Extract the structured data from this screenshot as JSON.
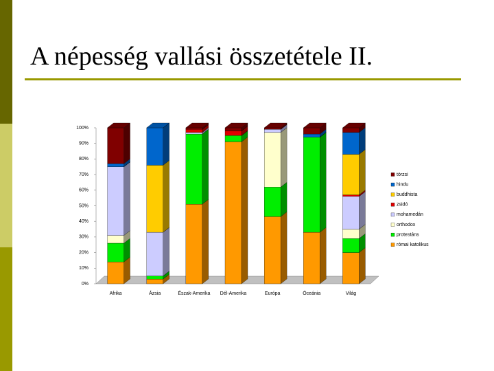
{
  "title": "A népesség vallási összetétele II.",
  "chart_data": {
    "type": "bar",
    "stacked": true,
    "categories": [
      "Afrika",
      "Ázsia",
      "Észak-Amerika",
      "Dél-Amerika",
      "Európa",
      "Óceánia",
      "Világ"
    ],
    "series": [
      {
        "name": "törzsi",
        "color": "#800000",
        "values": [
          23,
          0,
          1,
          2,
          1,
          4,
          3
        ]
      },
      {
        "name": "hindu",
        "color": "#0066cc",
        "values": [
          2,
          24,
          0,
          0,
          0,
          2,
          14
        ]
      },
      {
        "name": "buddhista",
        "color": "#ffcc00",
        "values": [
          0,
          43,
          0,
          0,
          0,
          0,
          26
        ]
      },
      {
        "name": "zsidó",
        "color": "#e00000",
        "values": [
          0,
          0,
          2,
          3,
          0,
          0,
          1
        ]
      },
      {
        "name": "mohamedán",
        "color": "#ccccff",
        "values": [
          44,
          28,
          1,
          0,
          2,
          0,
          21
        ]
      },
      {
        "name": "orthodox",
        "color": "#ffffcc",
        "values": [
          5,
          0,
          0,
          0,
          35,
          0,
          6
        ]
      },
      {
        "name": "protestáns",
        "color": "#00ee00",
        "values": [
          12,
          2,
          45,
          4,
          19,
          61,
          9
        ]
      },
      {
        "name": "római katolikus",
        "color": "#ff9900",
        "values": [
          14,
          3,
          51,
          91,
          43,
          33,
          20
        ]
      }
    ],
    "ylim": [
      0,
      100
    ],
    "yticks": [
      {
        "value": 0,
        "label": "0%"
      },
      {
        "value": 10,
        "label": "10%"
      },
      {
        "value": 20,
        "label": "20%"
      },
      {
        "value": 30,
        "label": "30%"
      },
      {
        "value": 40,
        "label": "40%"
      },
      {
        "value": 50,
        "label": "50%"
      },
      {
        "value": 60,
        "label": "60%"
      },
      {
        "value": 70,
        "label": "70%"
      },
      {
        "value": 80,
        "label": "80%"
      },
      {
        "value": 90,
        "label": "90%"
      },
      {
        "value": 100,
        "label": "100%"
      }
    ],
    "legend": "right"
  }
}
